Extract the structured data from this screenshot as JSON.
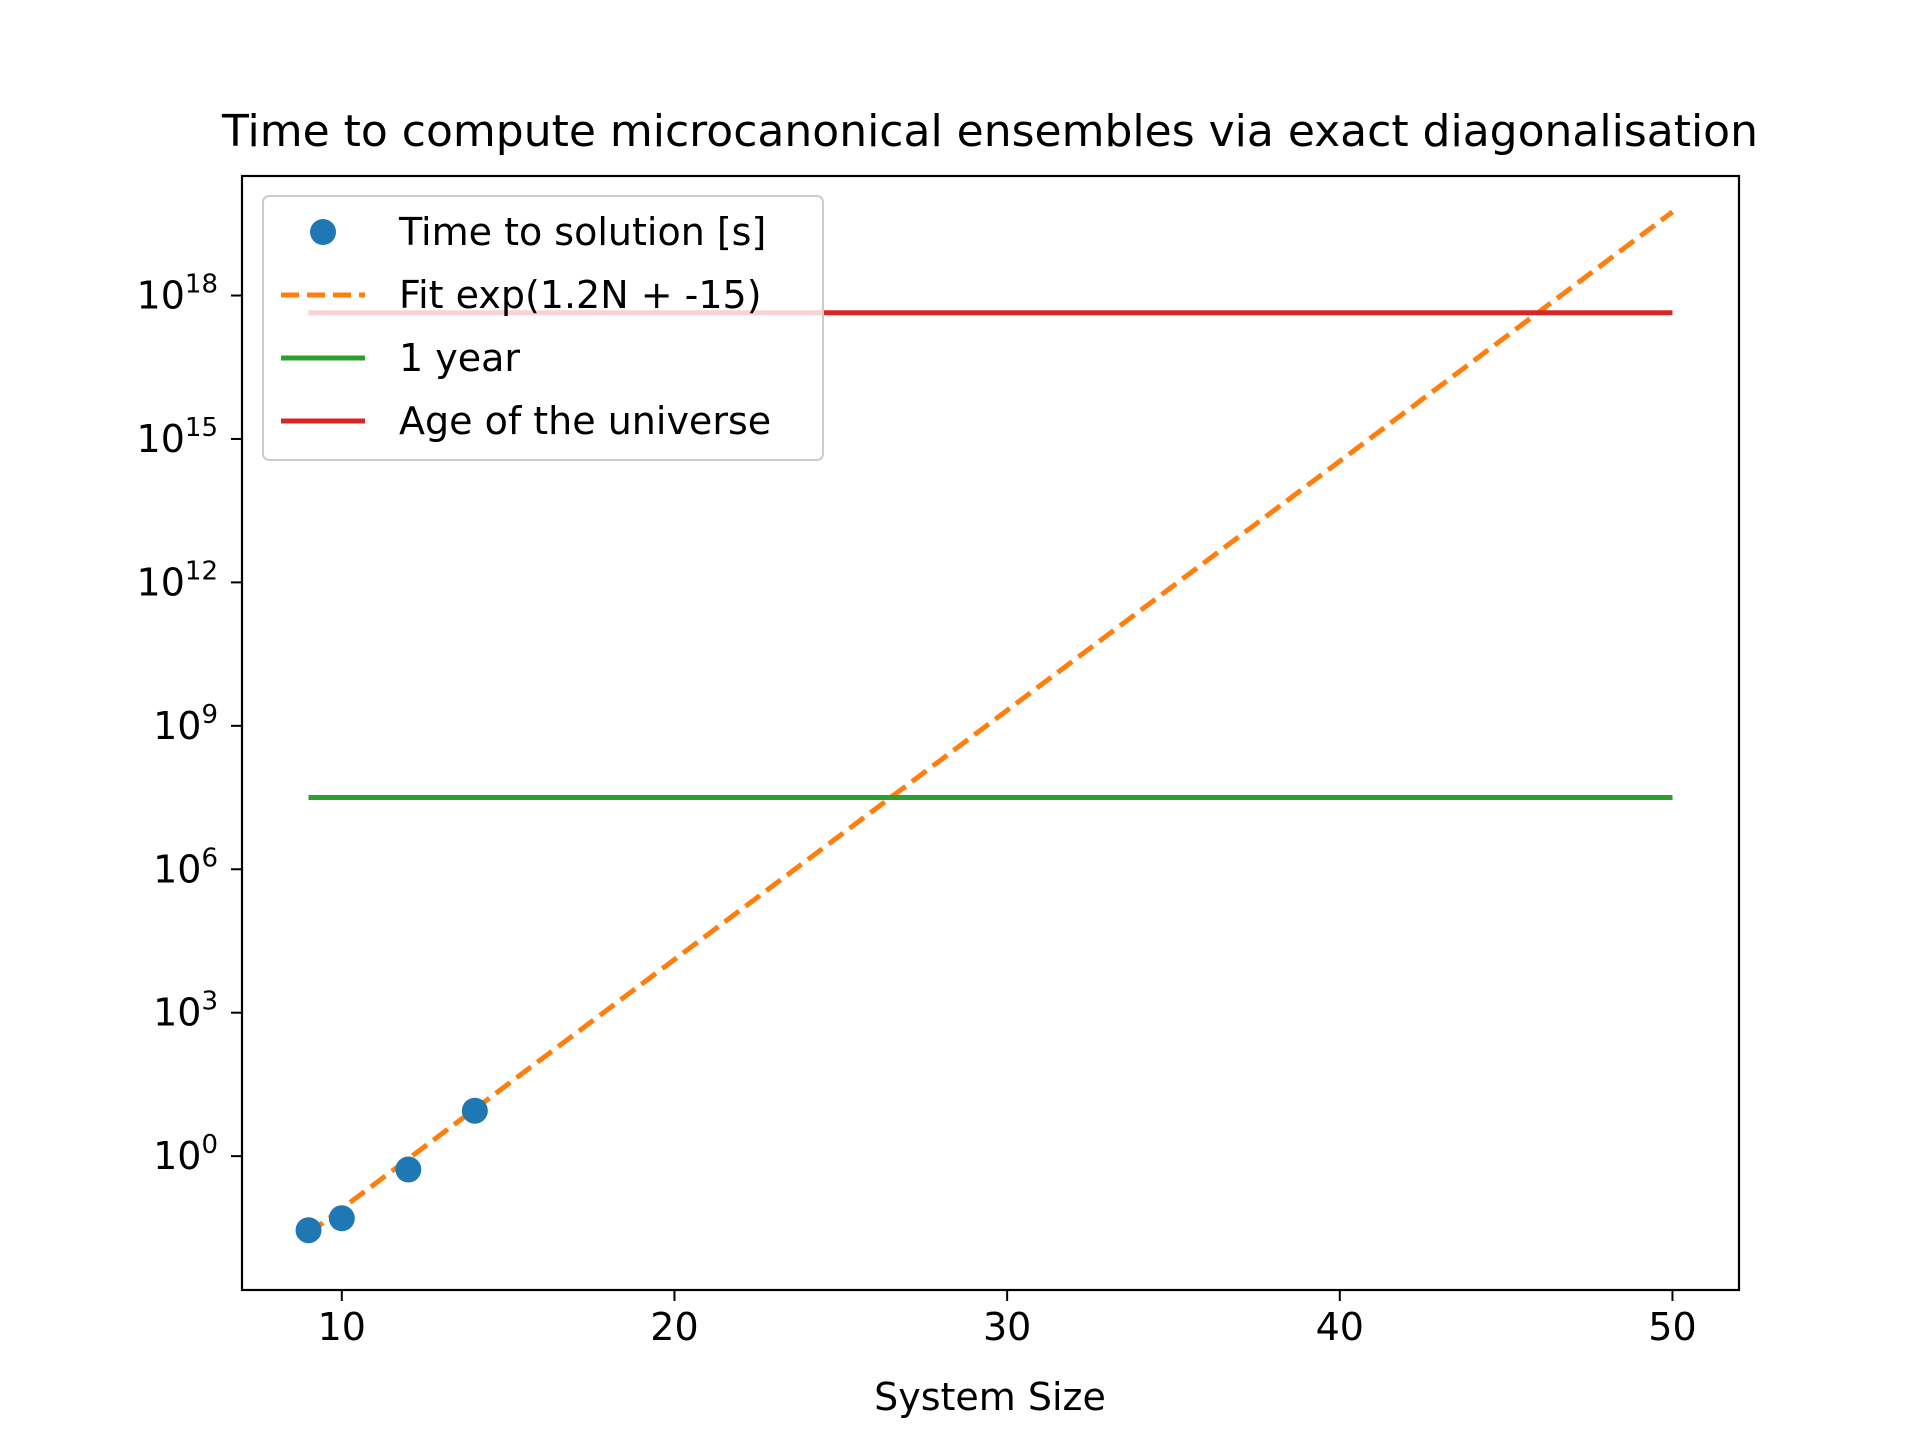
{
  "chart_data": {
    "type": "line",
    "title": "Time to compute microcanonical ensembles via exact diagonalisation",
    "xlabel": "System Size",
    "ylabel": "",
    "yscale": "log",
    "xlim": [
      7,
      52
    ],
    "ylim_log10": [
      -2.8,
      20.5
    ],
    "xticks": [
      10,
      20,
      30,
      40,
      50
    ],
    "yticks_exponent": [
      0,
      3,
      6,
      9,
      12,
      15,
      18
    ],
    "grid": false,
    "legend_position": "top-left",
    "series": [
      {
        "name": "Time to solution [s]",
        "kind": "scatter",
        "color": "#1f77b4",
        "x": [
          9,
          10,
          12,
          14
        ],
        "y_log10": [
          -1.55,
          -1.3,
          -0.28,
          0.95
        ]
      },
      {
        "name": "Fit exp(1.2N + -15)",
        "kind": "line",
        "style": "dashed",
        "color": "#ff7f0e",
        "x": [
          9,
          50
        ],
        "y_log10": [
          -1.62,
          19.75
        ]
      },
      {
        "name": "1 year",
        "kind": "line",
        "style": "solid",
        "color": "#2ca02c",
        "x": [
          9,
          50
        ],
        "y_log10": [
          7.5,
          7.5
        ]
      },
      {
        "name": "Age of the universe",
        "kind": "line",
        "style": "solid",
        "color": "#d62728",
        "x": [
          9,
          50
        ],
        "y_log10": [
          17.64,
          17.64
        ]
      }
    ]
  }
}
